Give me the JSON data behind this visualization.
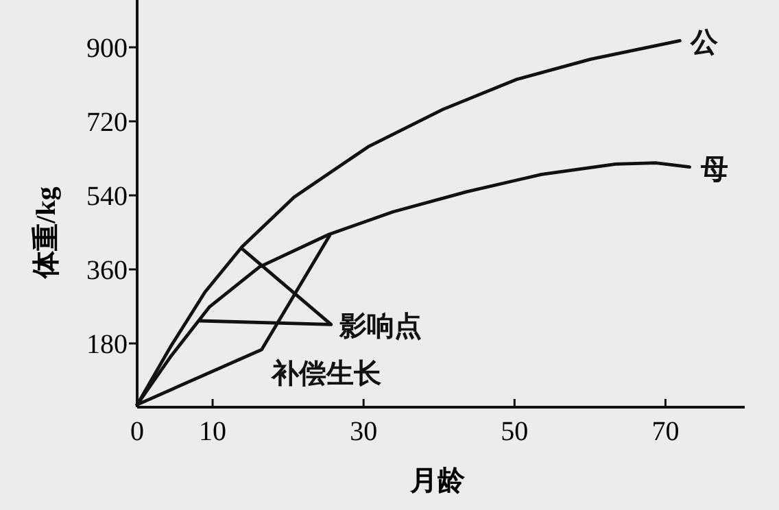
{
  "chart_data": {
    "type": "line",
    "xlabel": "月龄",
    "ylabel": "体重/kg",
    "xlim": [
      0,
      80.5
    ],
    "ylim": [
      25,
      1015
    ],
    "xticks": [
      0,
      10,
      30,
      50,
      70
    ],
    "yticks": [
      180,
      360,
      540,
      720,
      900
    ],
    "grid": false,
    "legend": false,
    "marker": "none",
    "line_style": "solid",
    "series": [
      {
        "name": "公",
        "color": "#111111",
        "x": [
          0,
          4.4,
          9,
          13.9,
          20.8,
          30.6,
          40.5,
          50.3,
          60.1,
          71.9
        ],
        "values": [
          31,
          171,
          305,
          415,
          536,
          658,
          749,
          822,
          871,
          916
        ]
      },
      {
        "name": "母",
        "color": "#111111",
        "x": [
          0,
          4.4,
          9.6,
          16.2,
          25.4,
          33.9,
          43.7,
          53.6,
          63.4,
          68.7,
          73.2
        ],
        "values": [
          31,
          147,
          269,
          366,
          445,
          500,
          549,
          591,
          616,
          619,
          609
        ]
      },
      {
        "name": "影响点",
        "color": "#111111",
        "x": [
          13.8,
          25.7,
          8.3
        ],
        "values": [
          412,
          226,
          235
        ]
      },
      {
        "name": "补偿生长",
        "color": "#111111",
        "x": [
          0,
          16.5,
          25.5
        ],
        "values": [
          31,
          165,
          442
        ]
      }
    ]
  }
}
